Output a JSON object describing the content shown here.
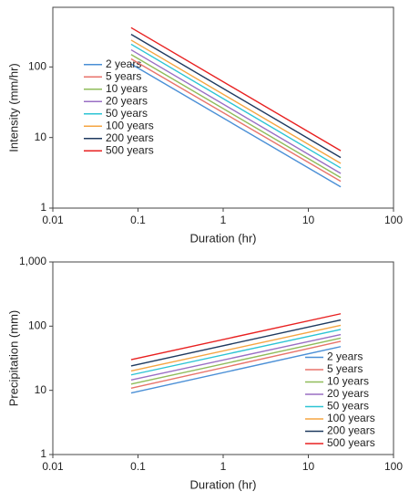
{
  "chart_data": [
    {
      "type": "line",
      "xlabel": "Duration (hr)",
      "ylabel": "Intensity (mm/hr)",
      "x": [
        0.083,
        24
      ],
      "log_x": true,
      "log_y": true,
      "xlim": [
        0.01,
        100
      ],
      "xticks": [
        0.01,
        0.1,
        1,
        10,
        100
      ],
      "ylim": [
        1,
        700
      ],
      "yticks": [
        1,
        10,
        100
      ],
      "legend": "center left",
      "series": [
        {
          "name": "2 years",
          "color": "#4a8fd6",
          "values": [
            110,
            2
          ]
        },
        {
          "name": "5 years",
          "color": "#e8736b",
          "values": [
            130,
            2.4
          ]
        },
        {
          "name": "10 years",
          "color": "#8fbc5a",
          "values": [
            150,
            2.7
          ]
        },
        {
          "name": "20 years",
          "color": "#9a6fc4",
          "values": [
            175,
            3.1
          ]
        },
        {
          "name": "50 years",
          "color": "#2cc4d4",
          "values": [
            210,
            3.7
          ]
        },
        {
          "name": "100 years",
          "color": "#f5a542",
          "values": [
            240,
            4.3
          ]
        },
        {
          "name": "200 years",
          "color": "#1f3a5f",
          "values": [
            290,
            5.2
          ]
        },
        {
          "name": "500 years",
          "color": "#e82020",
          "values": [
            360,
            6.5
          ]
        }
      ]
    },
    {
      "type": "line",
      "xlabel": "Duration (hr)",
      "ylabel": "Precipitation (mm)",
      "x": [
        0.083,
        24
      ],
      "log_x": true,
      "log_y": true,
      "xlim": [
        0.01,
        100
      ],
      "xticks": [
        0.01,
        0.1,
        1,
        10,
        100
      ],
      "ylim": [
        1,
        1000
      ],
      "yticks": [
        1,
        10,
        100,
        {
          "value": 1000,
          "label": "1,000"
        }
      ],
      "legend": "lower right",
      "series": [
        {
          "name": "2 years",
          "color": "#4a8fd6",
          "values": [
            9.1,
            48
          ]
        },
        {
          "name": "5 years",
          "color": "#e8736b",
          "values": [
            10.8,
            58
          ]
        },
        {
          "name": "10 years",
          "color": "#8fbc5a",
          "values": [
            12.5,
            65
          ]
        },
        {
          "name": "20 years",
          "color": "#9a6fc4",
          "values": [
            14.5,
            74
          ]
        },
        {
          "name": "50 years",
          "color": "#2cc4d4",
          "values": [
            17.4,
            89
          ]
        },
        {
          "name": "100 years",
          "color": "#f5a542",
          "values": [
            20,
            103
          ]
        },
        {
          "name": "200 years",
          "color": "#1f3a5f",
          "values": [
            24,
            125
          ]
        },
        {
          "name": "500 years",
          "color": "#e82020",
          "values": [
            30,
            156
          ]
        }
      ]
    }
  ]
}
